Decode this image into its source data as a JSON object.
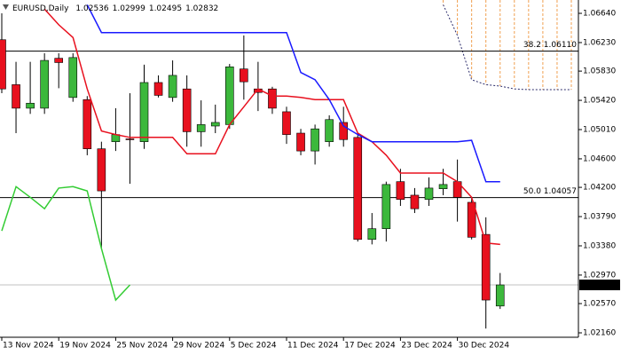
{
  "chart_data": {
    "type": "candlestick",
    "title": "EURUSD,Daily",
    "ohlc_labels": [
      "1.02536",
      "1.02999",
      "1.02495",
      "1.02832"
    ],
    "categories": [
      "13 Nov 2024",
      null,
      null,
      null,
      "19 Nov 2024",
      null,
      null,
      null,
      "25 Nov 2024",
      null,
      null,
      null,
      "29 Nov 2024",
      null,
      null,
      null,
      "5 Dec 2024",
      null,
      null,
      null,
      "11 Dec 2024",
      null,
      null,
      null,
      "17 Dec 2024",
      null,
      null,
      null,
      "23 Dec 2024",
      null,
      null,
      null,
      "30 Dec 2024",
      null,
      null,
      null,
      null,
      null,
      null,
      null,
      null
    ],
    "open": [
      1.0627,
      1.0564,
      1.0531,
      1.0531,
      1.0601,
      1.0546,
      1.0543,
      1.0474,
      1.0484,
      1.0488,
      1.0484,
      1.0567,
      1.0546,
      1.0558,
      1.0498,
      1.0506,
      1.0508,
      1.0586,
      1.0558,
      1.0558,
      1.0526,
      1.0496,
      1.0471,
      1.0484,
      1.0511,
      1.049,
      1.0347,
      1.0362,
      1.0428,
      1.0409,
      1.0403,
      1.0418,
      1.0428,
      1.0399,
      1.0354,
      1.02536,
      null,
      null,
      null,
      null,
      null
    ],
    "high": [
      1.0664,
      1.0596,
      1.0596,
      1.0608,
      1.0608,
      1.0608,
      1.0548,
      1.0484,
      1.0531,
      1.0552,
      1.0592,
      1.0577,
      1.0598,
      1.0577,
      1.0542,
      1.0536,
      1.0593,
      1.0633,
      1.0596,
      1.0561,
      1.0533,
      1.0502,
      1.0508,
      1.0521,
      1.0533,
      1.0496,
      1.0384,
      1.0428,
      1.0446,
      1.0419,
      1.0434,
      1.0446,
      1.0459,
      1.0406,
      1.0378,
      1.02999,
      null,
      null,
      null,
      null,
      null
    ],
    "low": [
      1.0552,
      1.0496,
      1.0523,
      1.0523,
      1.0559,
      1.054,
      1.0465,
      1.0334,
      1.0471,
      1.0425,
      1.0474,
      1.0546,
      1.054,
      1.0477,
      1.0477,
      1.0496,
      1.0502,
      1.0543,
      1.0527,
      1.0523,
      1.0481,
      1.0465,
      1.0452,
      1.0477,
      1.0477,
      1.0344,
      1.034,
      1.0344,
      1.0394,
      1.0384,
      1.0394,
      1.0409,
      1.0372,
      1.0347,
      1.0222,
      1.02495,
      null,
      null,
      null,
      null,
      null
    ],
    "close": [
      1.0558,
      1.0531,
      1.0538,
      1.0598,
      1.0595,
      1.0602,
      1.0474,
      1.0415,
      1.0494,
      1.0487,
      1.0567,
      1.0549,
      1.0577,
      1.0498,
      1.0508,
      1.0511,
      1.0589,
      1.0568,
      1.0553,
      1.0531,
      1.0494,
      1.0471,
      1.0502,
      1.0515,
      1.0487,
      1.0347,
      1.0362,
      1.0424,
      1.0403,
      1.039,
      1.0419,
      1.0424,
      1.0406,
      1.035,
      1.0262,
      1.02832,
      null,
      null,
      null,
      null,
      null
    ],
    "up_color": "#3cb83c",
    "down_color": "#e8101e",
    "lines": [
      {
        "color": "#e8101e",
        "style": "solid",
        "values": [
          null,
          null,
          null,
          1.067,
          1.0648,
          1.063,
          1.0558,
          1.0499,
          1.0494,
          1.049,
          1.049,
          1.049,
          1.049,
          1.0467,
          1.0467,
          1.0467,
          1.0508,
          1.0533,
          1.0558,
          1.0548,
          1.0548,
          1.0546,
          1.0543,
          1.0543,
          1.0543,
          1.0496,
          1.0484,
          1.0465,
          1.044,
          1.044,
          1.044,
          1.044,
          1.0428,
          1.0406,
          1.0342,
          1.034,
          null,
          null,
          null,
          null,
          null
        ]
      },
      {
        "color": "#1a1aff",
        "style": "solid",
        "values": [
          null,
          null,
          null,
          null,
          null,
          null,
          1.0676,
          1.0637,
          1.0637,
          1.0637,
          1.0637,
          1.0637,
          1.0637,
          1.0637,
          1.0637,
          1.0637,
          1.0637,
          1.0637,
          1.0637,
          1.0637,
          1.0637,
          1.0581,
          1.0571,
          1.0543,
          1.0506,
          1.0494,
          1.0484,
          1.0484,
          1.0484,
          1.0484,
          1.0484,
          1.0484,
          1.0484,
          1.0486,
          1.0428,
          1.0428,
          null,
          null,
          null,
          null,
          null
        ]
      },
      {
        "color": "#33cc33",
        "style": "solid",
        "values": [
          1.0359,
          1.0421,
          1.0406,
          1.039,
          1.0419,
          1.0421,
          1.0415,
          1.0334,
          1.0262,
          1.02832,
          null,
          null,
          null,
          null,
          null,
          null,
          null,
          null,
          null,
          null,
          null,
          null,
          null,
          null,
          null,
          null,
          null,
          null,
          null,
          null,
          null,
          null,
          null,
          null,
          null,
          null,
          null,
          null,
          null,
          null,
          null
        ]
      }
    ],
    "cloud": {
      "color": "#f0a050",
      "edge_color": "#2a2a6a",
      "values": [
        null,
        null,
        null,
        null,
        null,
        null,
        null,
        null,
        null,
        null,
        null,
        null,
        null,
        null,
        null,
        null,
        null,
        null,
        null,
        null,
        null,
        null,
        null,
        null,
        null,
        null,
        null,
        null,
        null,
        null,
        null,
        1.0676,
        1.0633,
        1.0571,
        1.0564,
        1.0562,
        1.0558,
        1.0557,
        1.0557,
        1.0557,
        1.0557
      ]
    },
    "levels": [
      {
        "value": 1.0611,
        "label": "38.2 1.06110"
      },
      {
        "value": 1.04057,
        "label": "50.0 1.04057"
      }
    ],
    "current_price": {
      "value": 1.02832,
      "label": "1.02832"
    },
    "ylim": [
      1.02098,
      1.06827
    ],
    "yticks": [
      {
        "value": 1.0664,
        "label": "1.06640"
      },
      {
        "value": 1.0623,
        "label": "1.06230"
      },
      {
        "value": 1.0583,
        "label": "1.05830"
      },
      {
        "value": 1.0542,
        "label": "1.05420"
      },
      {
        "value": 1.0501,
        "label": "1.05010"
      },
      {
        "value": 1.046,
        "label": "1.04600"
      },
      {
        "value": 1.042,
        "label": "1.04200"
      },
      {
        "value": 1.0379,
        "label": "1.03790"
      },
      {
        "value": 1.0338,
        "label": "1.03380"
      },
      {
        "value": 1.0297,
        "label": "1.02970"
      },
      {
        "value": 1.0257,
        "label": "1.02570"
      },
      {
        "value": 1.0216,
        "label": "1.02160"
      }
    ]
  }
}
